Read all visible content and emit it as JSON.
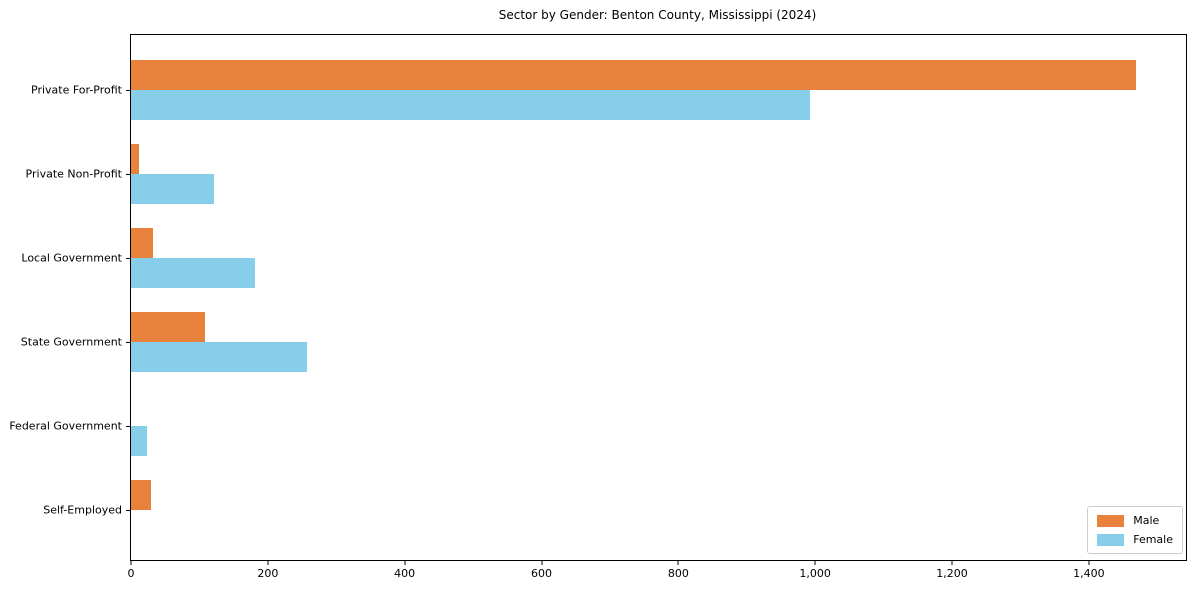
{
  "chart_data": {
    "type": "bar",
    "orientation": "horizontal",
    "title": "Sector by Gender: Benton County, Mississippi (2024)",
    "categories": [
      "Private For-Profit",
      "Private Non-Profit",
      "Local Government",
      "State Government",
      "Federal Government",
      "Self-Employed"
    ],
    "series": [
      {
        "name": "Male",
        "color": "#e8813c",
        "values": [
          1469,
          12,
          32,
          108,
          0,
          29
        ]
      },
      {
        "name": "Female",
        "color": "#87ceeb",
        "values": [
          992,
          121,
          181,
          257,
          23,
          0
        ]
      }
    ],
    "xlabel": "",
    "ylabel": "",
    "xlim": [
      0,
      1542
    ],
    "xticks": {
      "values": [
        0,
        200,
        400,
        600,
        800,
        1000,
        1200,
        1400
      ],
      "labels": [
        "0",
        "200",
        "400",
        "600",
        "800",
        "1,000",
        "1,200",
        "1,400"
      ]
    },
    "grid": false,
    "legend": {
      "position": "lower right",
      "entries": [
        "Male",
        "Female"
      ]
    },
    "colors": {
      "axis": "#000000",
      "background": "#ffffff",
      "legend_border": "#cccccc"
    }
  }
}
